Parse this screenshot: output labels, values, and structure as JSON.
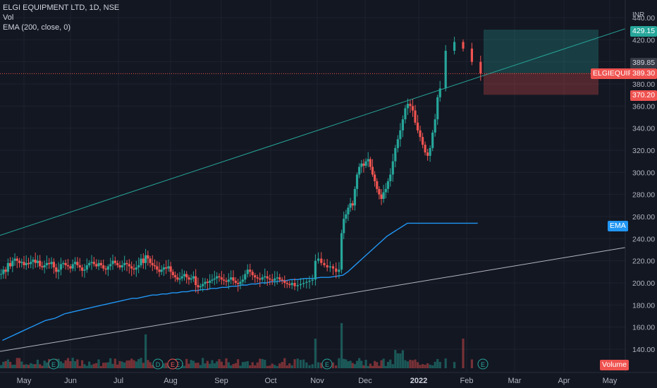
{
  "legend": {
    "title": "ELGI EQUIPMENT LTD, 1D, NSE",
    "vol": "Vol",
    "ema": "EMA (200, close, 0)"
  },
  "price_axis": {
    "currency": "INR",
    "ticks": [
      "440.00",
      "420.00",
      "400.00",
      "380.00",
      "360.00",
      "340.00",
      "320.00",
      "300.00",
      "280.00",
      "260.00",
      "240.00",
      "220.00",
      "200.00",
      "180.00",
      "160.00",
      "140.00"
    ]
  },
  "time_axis": {
    "ticks": [
      "May",
      "Jun",
      "Jul",
      "Aug",
      "Sep",
      "Oct",
      "Nov",
      "Dec",
      "2022",
      "Feb",
      "Mar",
      "Apr",
      "May"
    ]
  },
  "labels": {
    "target": "429.15",
    "crosshair": "389.85",
    "symbol": "ELGIEQUIP",
    "last": "389.30",
    "stop": "370.20",
    "ema": "EMA",
    "volume": "Volume"
  },
  "event_marks": [
    "E",
    "D",
    "E",
    "E",
    "E",
    "E"
  ],
  "colors": {
    "up": "#26a69a",
    "down": "#ef5350",
    "ema": "#2196f3",
    "background": "#131722",
    "trendline_upper": "#26a69a",
    "trendline_lower": "#b2b5be"
  },
  "chart_data": {
    "type": "candlestick",
    "symbol": "ELGIEQUIP",
    "exchange": "NSE",
    "interval": "1D",
    "ylim": [
      130,
      445
    ],
    "months": [
      "May",
      "Jun",
      "Jul",
      "Aug",
      "Sep",
      "Oct",
      "Nov",
      "Dec",
      "Jan 2022",
      "Feb"
    ],
    "closes": [
      [
        208,
        212,
        210,
        218,
        215,
        220,
        222,
        220,
        218,
        219,
        216,
        218,
        217,
        219,
        221,
        218,
        220,
        215,
        214,
        216,
        218
      ],
      [
        217,
        219,
        214,
        210,
        212,
        217,
        218,
        216,
        215,
        213,
        217,
        219,
        216,
        214,
        211,
        212,
        216,
        218,
        219,
        217
      ],
      [
        215,
        218,
        216,
        213,
        212,
        215,
        217,
        220,
        218,
        216,
        214,
        216,
        218,
        217,
        215,
        213,
        212,
        214,
        216,
        222,
        218
      ],
      [
        225,
        222,
        218,
        216,
        215,
        212,
        210,
        212,
        214,
        213,
        215,
        210,
        207,
        205,
        203,
        204,
        206,
        208,
        205,
        203,
        204,
        206
      ],
      [
        198,
        196,
        197,
        199,
        201,
        200,
        202,
        203,
        204,
        206,
        205,
        203,
        202,
        201,
        203,
        205,
        202,
        200,
        199,
        201,
        203
      ],
      [
        208,
        212,
        210,
        207,
        205,
        204,
        203,
        205,
        206,
        204,
        203,
        202,
        204,
        205,
        203,
        202,
        200,
        199,
        198,
        200
      ],
      [
        197,
        198,
        199,
        200,
        201,
        202,
        203,
        220,
        222,
        218,
        216,
        214,
        215,
        213,
        210,
        212
      ],
      [
        245,
        258,
        262,
        268,
        272,
        270,
        285,
        298,
        305,
        308,
        306,
        310,
        312,
        305,
        298,
        292,
        285,
        280,
        276,
        282,
        285,
        292
      ],
      [
        298,
        310,
        322,
        330,
        338,
        348,
        358,
        362,
        360,
        356,
        345,
        338,
        332,
        325,
        318,
        315,
        322,
        336,
        348,
        368,
        376
      ],
      [
        410,
        418,
        412,
        400,
        389.3
      ]
    ],
    "ema200": [
      [
        148,
        150,
        152,
        154,
        156,
        158,
        160,
        162,
        164,
        166
      ],
      [
        167,
        168,
        170,
        172,
        173,
        174,
        175,
        176,
        177,
        178
      ],
      [
        179,
        180,
        181,
        182,
        183,
        184,
        185,
        186,
        186,
        187
      ],
      [
        188,
        189,
        189,
        190,
        190,
        191,
        191,
        192,
        192,
        193
      ],
      [
        193,
        194,
        194,
        195,
        195,
        196,
        196,
        197,
        197,
        198
      ],
      [
        198,
        199,
        199,
        200,
        200,
        201,
        201,
        202,
        202,
        203
      ],
      [
        203,
        204,
        204,
        205,
        205,
        206
      ],
      [
        207,
        210,
        214,
        218,
        222,
        226,
        230,
        234,
        238,
        242
      ],
      [
        245,
        248,
        251,
        254,
        236,
        238,
        240,
        242,
        244,
        247
      ],
      [
        249,
        251,
        253
      ]
    ],
    "trendlines": [
      {
        "name": "upper",
        "from": [
          "Apr",
          243
        ],
        "to": [
          "May",
          430
        ]
      },
      {
        "name": "lower",
        "from": [
          "Apr",
          138
        ],
        "to": [
          "May",
          232
        ]
      }
    ],
    "position": {
      "entry": 389.85,
      "target": 429.15,
      "stop": 370.2
    },
    "last_price": 389.3
  }
}
